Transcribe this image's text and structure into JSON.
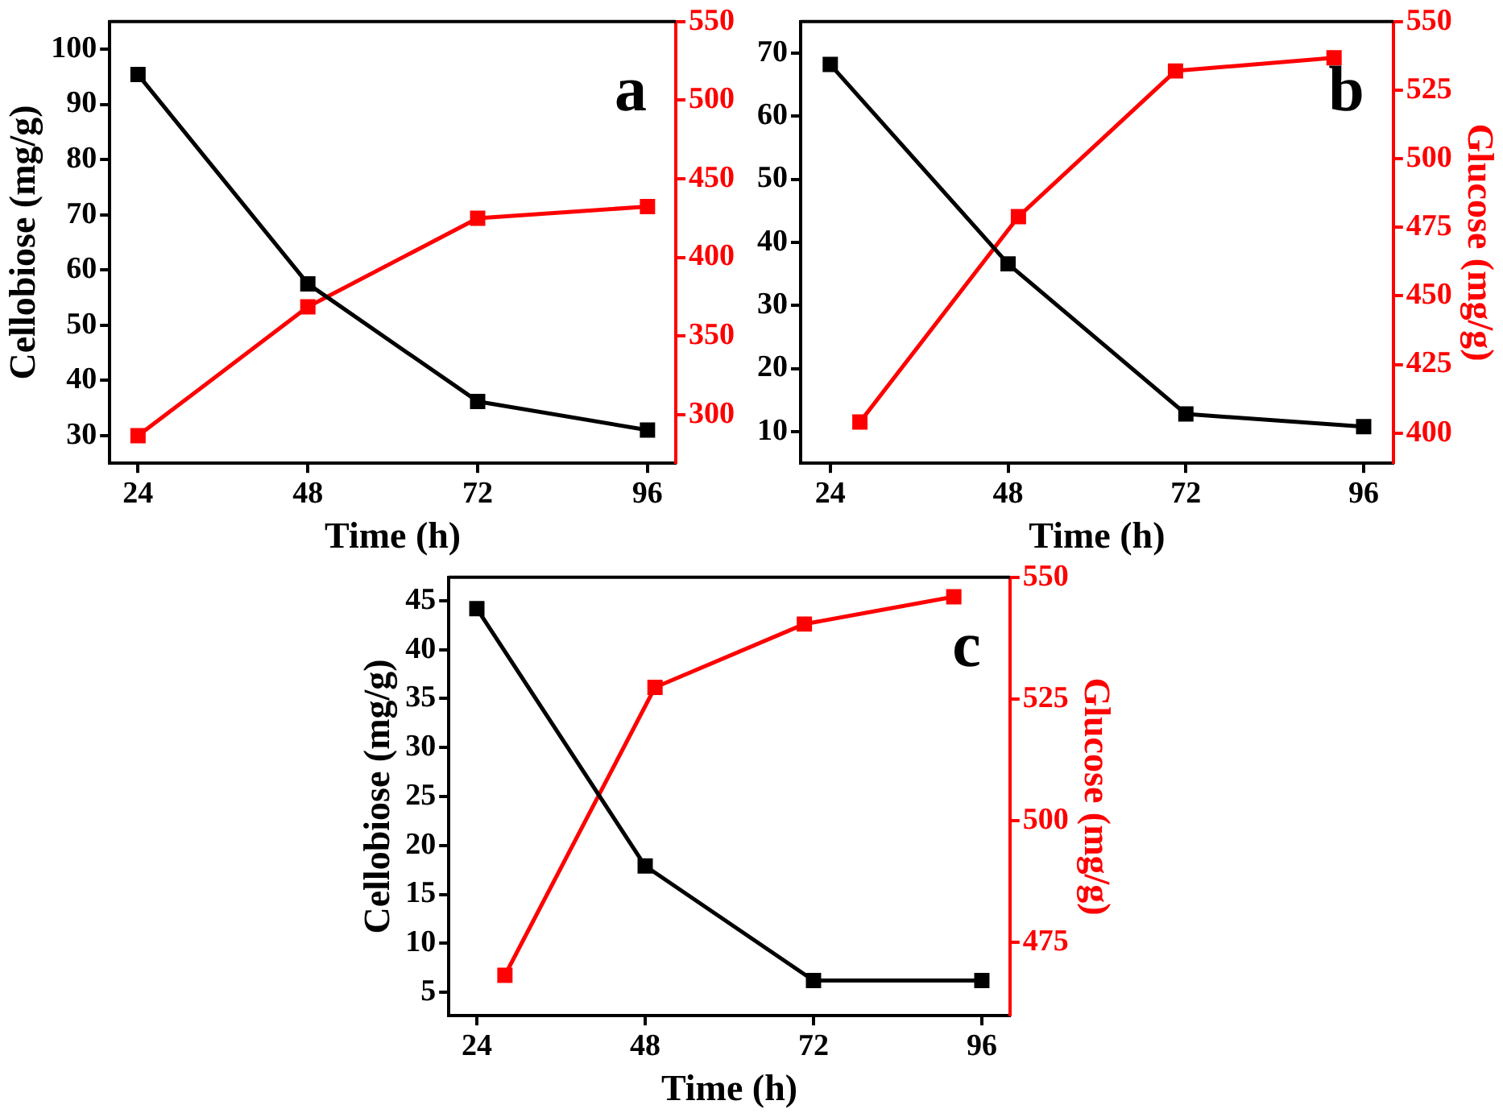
{
  "chart_data": [
    {
      "type": "line",
      "xlabel": "Time (h)",
      "ylabel": "Cellobiose (mg/g)",
      "annotations": [
        "a"
      ],
      "xlim": [
        20,
        100
      ],
      "xticks": [
        24,
        48,
        72,
        96
      ],
      "ylim": [
        25,
        105
      ],
      "yticks": [
        30,
        40,
        50,
        60,
        70,
        80,
        90,
        100
      ],
      "y2lim": [
        269,
        550
      ],
      "y2ticks": [
        300,
        350,
        400,
        450,
        500,
        550
      ],
      "series": [
        {
          "color": "#000000",
          "x": [
            24,
            48,
            72,
            96
          ],
          "values": [
            95.4,
            57.5,
            36.2,
            31
          ]
        },
        {
          "color": "#ff0000",
          "axis": "y2",
          "x": [
            24,
            48,
            72,
            96
          ],
          "values": [
            286.5,
            368.5,
            424.9,
            432.3
          ]
        }
      ],
      "marker": "square",
      "line_style": "solid",
      "grid": false,
      "legend": false
    },
    {
      "type": "line",
      "xlabel": "Time (h)",
      "y2label": "Glucose (mg/g)",
      "annotations": [
        "b"
      ],
      "xlim": [
        20,
        100
      ],
      "xticks": [
        24,
        48,
        72,
        96
      ],
      "ylim": [
        5,
        75
      ],
      "yticks": [
        10,
        20,
        30,
        40,
        50,
        60,
        70
      ],
      "y2lim": [
        389,
        550
      ],
      "y2ticks": [
        400,
        425,
        450,
        475,
        500,
        525,
        550
      ],
      "series": [
        {
          "color": "#000000",
          "x": [
            24,
            48,
            72,
            96
          ],
          "values": [
            68.2,
            36.6,
            12.8,
            10.8
          ]
        },
        {
          "color": "#ff0000",
          "axis": "y2",
          "x": [
            28,
            49.4,
            70.6,
            92
          ],
          "values": [
            404,
            478.9,
            532,
            536.8
          ]
        }
      ],
      "marker": "square",
      "line_style": "solid",
      "grid": false,
      "legend": false
    },
    {
      "type": "line",
      "xlabel": "Time (h)",
      "ylabel": "Cellobiose (mg/g)",
      "y2label": "Glucose (mg/g)",
      "annotations": [
        "c"
      ],
      "xlim": [
        20,
        100
      ],
      "xticks": [
        24,
        48,
        72,
        96
      ],
      "ylim": [
        2.6,
        47.4
      ],
      "yticks": [
        5,
        10,
        15,
        20,
        25,
        30,
        35,
        40,
        45
      ],
      "y2lim": [
        460,
        550
      ],
      "y2ticks": [
        475,
        500,
        525,
        550
      ],
      "series": [
        {
          "color": "#000000",
          "x": [
            24,
            48,
            72,
            96
          ],
          "values": [
            44.2,
            17.9,
            6.2,
            6.2
          ]
        },
        {
          "color": "#ff0000",
          "axis": "y2",
          "x": [
            28,
            49.4,
            70.7,
            92
          ],
          "values": [
            468.3,
            527.4,
            540.4,
            546
          ]
        }
      ],
      "marker": "square",
      "line_style": "solid",
      "grid": false,
      "legend": false
    }
  ]
}
